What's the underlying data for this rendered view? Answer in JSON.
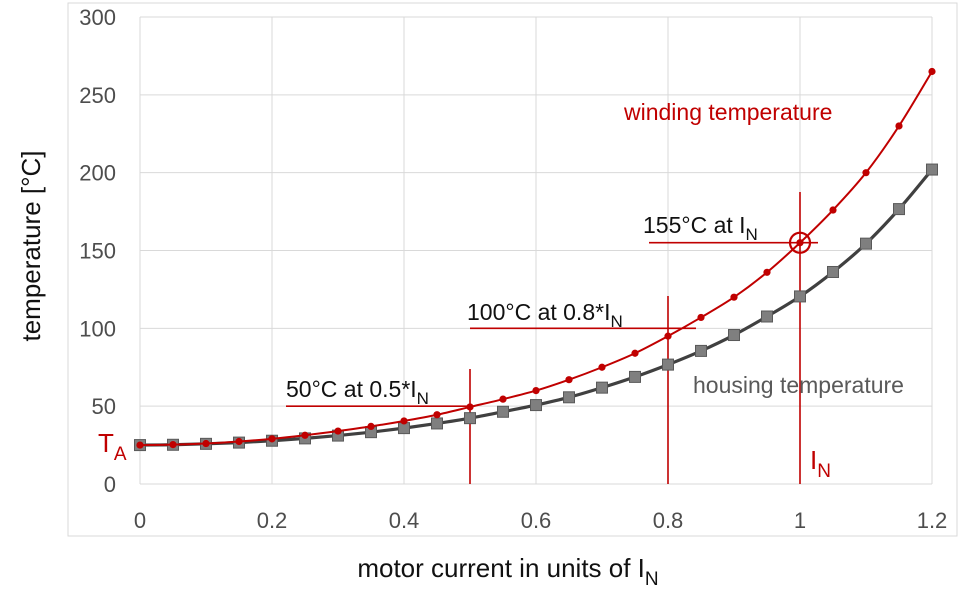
{
  "colors": {
    "winding": "#c00000",
    "housing_line": "#404040",
    "housing_marker": "#7f7f7f",
    "grid": "#d9d9d9",
    "reference": "#c00000"
  },
  "chart_data": {
    "type": "line",
    "xlabel": "motor current in units of I",
    "xlabel_sub": "N",
    "ylabel": "temperature [°C]",
    "xlim": [
      0,
      1.2
    ],
    "ylim": [
      0,
      300
    ],
    "x_ticks": [
      {
        "value": 0,
        "label": "0"
      },
      {
        "value": 0.2,
        "label": "0.2"
      },
      {
        "value": 0.4,
        "label": "0.4"
      },
      {
        "value": 0.6,
        "label": "0.6"
      },
      {
        "value": 0.8,
        "label": "0.8"
      },
      {
        "value": 1.0,
        "label": "1"
      },
      {
        "value": 1.2,
        "label": "1.2"
      }
    ],
    "y_ticks": [
      {
        "value": 0,
        "label": "0"
      },
      {
        "value": 50,
        "label": "50"
      },
      {
        "value": 100,
        "label": "100"
      },
      {
        "value": 150,
        "label": "150"
      },
      {
        "value": 200,
        "label": "200"
      },
      {
        "value": 250,
        "label": "250"
      },
      {
        "value": 300,
        "label": "300"
      }
    ],
    "grid": true,
    "x": [
      0,
      0.05,
      0.1,
      0.15,
      0.2,
      0.25,
      0.3,
      0.35,
      0.4,
      0.45,
      0.5,
      0.55,
      0.6,
      0.65,
      0.7,
      0.75,
      0.8,
      0.85,
      0.9,
      0.95,
      1.0,
      1.05,
      1.1,
      1.15,
      1.2
    ],
    "series": [
      {
        "name": "winding temperature",
        "marker": "circle",
        "values": [
          25,
          25.3,
          26,
          27.3,
          29,
          31.3,
          34,
          37,
          40.5,
          44.5,
          49.5,
          54.5,
          60,
          67,
          75,
          84,
          95,
          107,
          120,
          136,
          155,
          176,
          200,
          230,
          265
        ]
      },
      {
        "name": "housing temperature",
        "marker": "square",
        "values": [
          25,
          25.2,
          25.8,
          26.6,
          27.8,
          29.3,
          31.1,
          33.3,
          35.9,
          38.9,
          42.3,
          46.4,
          50.7,
          55.7,
          61.9,
          68.8,
          76.7,
          85.5,
          95.7,
          107.6,
          120.5,
          136.2,
          154.4,
          176.6,
          202
        ]
      }
    ],
    "reference_lines": [
      {
        "x": 0.5,
        "y": 50,
        "label": "50°C at 0.5*I",
        "sub": "N"
      },
      {
        "x": 0.8,
        "y": 100,
        "label": "100°C at 0.8*I",
        "sub": "N"
      },
      {
        "x": 1.0,
        "y": 155,
        "label": "155°C at I",
        "sub": "N"
      }
    ],
    "annotations": {
      "ambient": {
        "text": "T",
        "sub": "A"
      },
      "rated_current": {
        "text": "I",
        "sub": "N"
      }
    }
  }
}
